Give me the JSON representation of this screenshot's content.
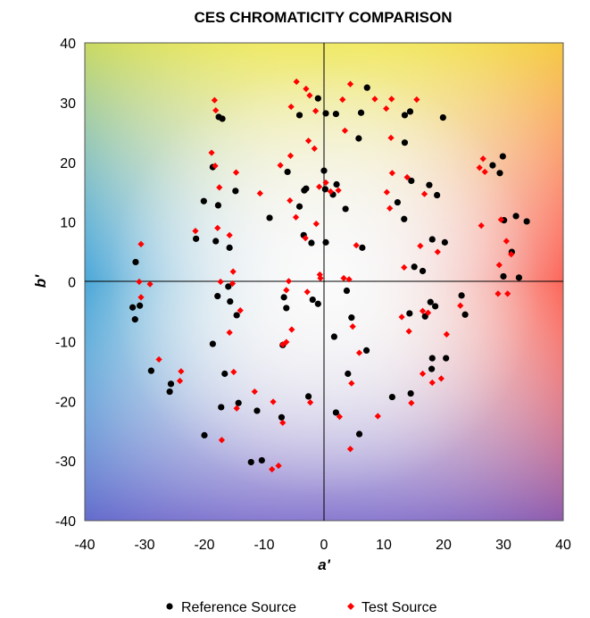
{
  "chart_data": {
    "type": "scatter",
    "title": "CES CHROMATICITY COMPARISON",
    "xlabel": "a'",
    "ylabel": "b'",
    "xlim": [
      -40,
      40
    ],
    "ylim": [
      -40,
      40
    ],
    "xticks": [
      "-40",
      "-30",
      "-20",
      "-10",
      "0",
      "10",
      "20",
      "30",
      "40"
    ],
    "yticks": [
      "40",
      "30",
      "20",
      "10",
      "0",
      "-10",
      "-20",
      "-30",
      "-40"
    ],
    "grid": false,
    "legend_position": "bottom",
    "series": [
      {
        "name": "Reference Source",
        "marker": "circle",
        "color": "#000000",
        "points": [
          [
            -31.5,
            3.3
          ],
          [
            -30.8,
            -4.0
          ],
          [
            -32.0,
            -4.3
          ],
          [
            -31.6,
            -6.3
          ],
          [
            -28.9,
            -14.9
          ],
          [
            -25.6,
            -17.1
          ],
          [
            -25.8,
            -18.4
          ],
          [
            -21.4,
            7.2
          ],
          [
            -20.1,
            13.5
          ],
          [
            -18.6,
            19.2
          ],
          [
            -18.1,
            6.8
          ],
          [
            -17.7,
            12.8
          ],
          [
            -17.6,
            27.6
          ],
          [
            -17.0,
            27.3
          ],
          [
            -15.8,
            5.7
          ],
          [
            -14.8,
            15.2
          ],
          [
            -16.0,
            -0.8
          ],
          [
            -17.8,
            -2.4
          ],
          [
            -15.7,
            -3.3
          ],
          [
            -14.6,
            -5.6
          ],
          [
            -18.6,
            -10.4
          ],
          [
            -16.6,
            -15.4
          ],
          [
            -17.2,
            -21.0
          ],
          [
            -14.3,
            -20.3
          ],
          [
            -20.0,
            -25.7
          ],
          [
            -12.2,
            -30.2
          ],
          [
            -10.4,
            -29.9
          ],
          [
            -11.2,
            -21.6
          ],
          [
            -9.1,
            10.7
          ],
          [
            -6.1,
            18.4
          ],
          [
            -4.1,
            27.9
          ],
          [
            -3.3,
            15.3
          ],
          [
            -3.0,
            15.6
          ],
          [
            -4.1,
            12.6
          ],
          [
            -3.4,
            7.8
          ],
          [
            -2.1,
            6.5
          ],
          [
            -6.3,
            -4.4
          ],
          [
            -6.7,
            -2.6
          ],
          [
            -6.9,
            -10.6
          ],
          [
            -7.1,
            -22.7
          ],
          [
            -2.6,
            -19.2
          ],
          [
            -1.9,
            -3.0
          ],
          [
            -1.0,
            -3.7
          ],
          [
            -1.0,
            30.7
          ],
          [
            0.3,
            28.2
          ],
          [
            0.0,
            18.6
          ],
          [
            0.2,
            15.5
          ],
          [
            1.5,
            14.6
          ],
          [
            2.1,
            16.3
          ],
          [
            2.0,
            28.1
          ],
          [
            3.6,
            12.2
          ],
          [
            5.8,
            24.0
          ],
          [
            6.2,
            28.3
          ],
          [
            0.3,
            6.6
          ],
          [
            6.4,
            5.7
          ],
          [
            7.2,
            32.5
          ],
          [
            3.8,
            -1.5
          ],
          [
            4.6,
            -6.0
          ],
          [
            1.7,
            -9.2
          ],
          [
            4.0,
            -15.4
          ],
          [
            2.0,
            -21.9
          ],
          [
            7.1,
            -11.5
          ],
          [
            5.9,
            -25.5
          ],
          [
            13.5,
            23.3
          ],
          [
            13.5,
            27.9
          ],
          [
            14.4,
            28.5
          ],
          [
            12.3,
            13.3
          ],
          [
            13.4,
            10.5
          ],
          [
            14.6,
            16.9
          ],
          [
            17.6,
            16.2
          ],
          [
            18.9,
            14.5
          ],
          [
            15.1,
            2.5
          ],
          [
            16.5,
            1.8
          ],
          [
            18.1,
            7.1
          ],
          [
            20.2,
            6.6
          ],
          [
            19.9,
            27.5
          ],
          [
            14.3,
            -5.3
          ],
          [
            16.9,
            -5.8
          ],
          [
            17.8,
            -3.4
          ],
          [
            18.6,
            -4.1
          ],
          [
            18.1,
            -12.8
          ],
          [
            18.0,
            -14.6
          ],
          [
            20.4,
            -12.8
          ],
          [
            11.4,
            -19.3
          ],
          [
            14.5,
            -18.7
          ],
          [
            23.0,
            -2.3
          ],
          [
            23.6,
            -5.5
          ],
          [
            28.2,
            19.5
          ],
          [
            29.9,
            21.0
          ],
          [
            29.4,
            18.2
          ],
          [
            30.1,
            10.3
          ],
          [
            32.1,
            11.0
          ],
          [
            33.9,
            10.1
          ],
          [
            31.4,
            5.0
          ],
          [
            32.6,
            0.7
          ],
          [
            30.0,
            0.9
          ]
        ]
      },
      {
        "name": "Test Source",
        "marker": "diamond",
        "color": "#ff0000",
        "points": [
          [
            -30.6,
            6.3
          ],
          [
            -30.9,
            0.0
          ],
          [
            -29.1,
            -0.4
          ],
          [
            -30.6,
            -2.6
          ],
          [
            -27.6,
            -13.0
          ],
          [
            -23.9,
            -15.0
          ],
          [
            -24.1,
            -16.6
          ],
          [
            -21.5,
            8.5
          ],
          [
            -18.8,
            21.6
          ],
          [
            -18.3,
            30.4
          ],
          [
            -18.1,
            28.7
          ],
          [
            -17.8,
            9.0
          ],
          [
            -17.5,
            15.8
          ],
          [
            -15.8,
            7.8
          ],
          [
            -15.2,
            1.7
          ],
          [
            -14.7,
            18.3
          ],
          [
            -18.2,
            19.4
          ],
          [
            -17.3,
            0.0
          ],
          [
            -15.3,
            -0.3
          ],
          [
            -14.0,
            -4.8
          ],
          [
            -15.8,
            -8.5
          ],
          [
            -15.1,
            -15.1
          ],
          [
            -14.6,
            -21.2
          ],
          [
            -17.1,
            -26.5
          ],
          [
            -11.6,
            -18.4
          ],
          [
            -10.7,
            14.8
          ],
          [
            -8.5,
            -20.1
          ],
          [
            -8.7,
            -31.4
          ],
          [
            -7.6,
            -30.8
          ],
          [
            -7.3,
            19.5
          ],
          [
            -5.5,
            29.3
          ],
          [
            -4.6,
            33.5
          ],
          [
            -3.0,
            32.3
          ],
          [
            -2.4,
            31.2
          ],
          [
            -2.6,
            23.6
          ],
          [
            -1.6,
            22.3
          ],
          [
            -1.4,
            28.6
          ],
          [
            -5.6,
            21.1
          ],
          [
            -5.7,
            13.6
          ],
          [
            -4.7,
            10.8
          ],
          [
            -3.1,
            7.3
          ],
          [
            -1.3,
            9.7
          ],
          [
            -5.9,
            0.1
          ],
          [
            -6.3,
            -1.4
          ],
          [
            -6.9,
            -10.5
          ],
          [
            -6.3,
            -10.1
          ],
          [
            -5.4,
            -8.0
          ],
          [
            -6.9,
            -23.6
          ],
          [
            -2.3,
            -20.2
          ],
          [
            -2.8,
            -1.7
          ],
          [
            -0.7,
            1.2
          ],
          [
            -0.6,
            0.6
          ],
          [
            0.3,
            16.6
          ],
          [
            -0.8,
            15.9
          ],
          [
            1.1,
            15.1
          ],
          [
            2.4,
            15.3
          ],
          [
            3.1,
            30.5
          ],
          [
            4.4,
            33.1
          ],
          [
            3.5,
            25.3
          ],
          [
            5.4,
            6.1
          ],
          [
            3.3,
            0.6
          ],
          [
            4.2,
            0.4
          ],
          [
            4.8,
            -7.5
          ],
          [
            5.9,
            -11.9
          ],
          [
            4.6,
            -17.0
          ],
          [
            2.6,
            -22.6
          ],
          [
            4.4,
            -28.0
          ],
          [
            9.0,
            -22.5
          ],
          [
            8.5,
            30.6
          ],
          [
            10.4,
            29.0
          ],
          [
            11.3,
            30.6
          ],
          [
            11.2,
            24.1
          ],
          [
            11.4,
            18.2
          ],
          [
            10.5,
            15.0
          ],
          [
            11.0,
            12.3
          ],
          [
            13.9,
            17.5
          ],
          [
            15.5,
            30.5
          ],
          [
            16.1,
            6.0
          ],
          [
            13.4,
            2.4
          ],
          [
            13.0,
            -5.9
          ],
          [
            14.2,
            -8.3
          ],
          [
            17.4,
            -5.2
          ],
          [
            16.5,
            -4.9
          ],
          [
            16.5,
            -15.4
          ],
          [
            18.1,
            -16.9
          ],
          [
            19.6,
            -16.2
          ],
          [
            16.8,
            14.7
          ],
          [
            19.0,
            5.0
          ],
          [
            14.6,
            -20.3
          ],
          [
            20.5,
            -8.8
          ],
          [
            22.8,
            -4.0
          ],
          [
            26.0,
            19.1
          ],
          [
            26.9,
            18.4
          ],
          [
            26.6,
            20.6
          ],
          [
            26.3,
            9.4
          ],
          [
            29.6,
            10.4
          ],
          [
            29.3,
            2.8
          ],
          [
            30.5,
            6.8
          ],
          [
            31.3,
            4.6
          ],
          [
            29.1,
            -2.0
          ],
          [
            30.7,
            -2.0
          ]
        ]
      }
    ]
  }
}
